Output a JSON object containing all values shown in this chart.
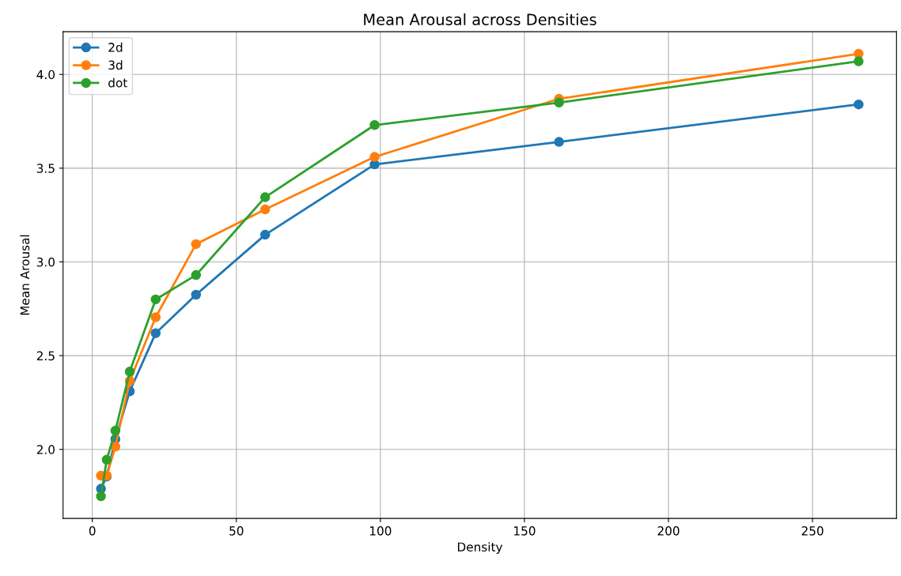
{
  "chart_data": {
    "type": "line",
    "title": "Mean Arousal across Densities",
    "xlabel": "Density",
    "ylabel": "Mean Arousal",
    "x": [
      3,
      5,
      8,
      13,
      22,
      36,
      60,
      98,
      162,
      266
    ],
    "series": [
      {
        "name": "2d",
        "color": "#1f77b4",
        "values": [
          1.79,
          1.855,
          2.055,
          2.31,
          2.62,
          2.825,
          3.145,
          3.52,
          3.64,
          3.84
        ]
      },
      {
        "name": "3d",
        "color": "#ff7f0e",
        "values": [
          1.86,
          1.86,
          2.015,
          2.365,
          2.705,
          3.095,
          3.28,
          3.56,
          3.87,
          4.11
        ]
      },
      {
        "name": "dot",
        "color": "#2ca02c",
        "values": [
          1.75,
          1.945,
          2.1,
          2.415,
          2.8,
          2.93,
          3.345,
          3.73,
          3.85,
          4.07
        ]
      }
    ],
    "xlim": [
      -10.15,
      279.15
    ],
    "ylim": [
      1.632,
      4.228
    ],
    "xticks": [
      0,
      50,
      100,
      150,
      200,
      250
    ],
    "yticks": [
      {
        "value": 2,
        "label": "2.0"
      },
      {
        "value": 2.5,
        "label": "2.5"
      },
      {
        "value": 3,
        "label": "3.0"
      },
      {
        "value": 3.5,
        "label": "3.5"
      },
      {
        "value": 4,
        "label": "4.0"
      }
    ],
    "grid": true,
    "legend": "top left",
    "marker": "circle",
    "line_style": "solid"
  }
}
